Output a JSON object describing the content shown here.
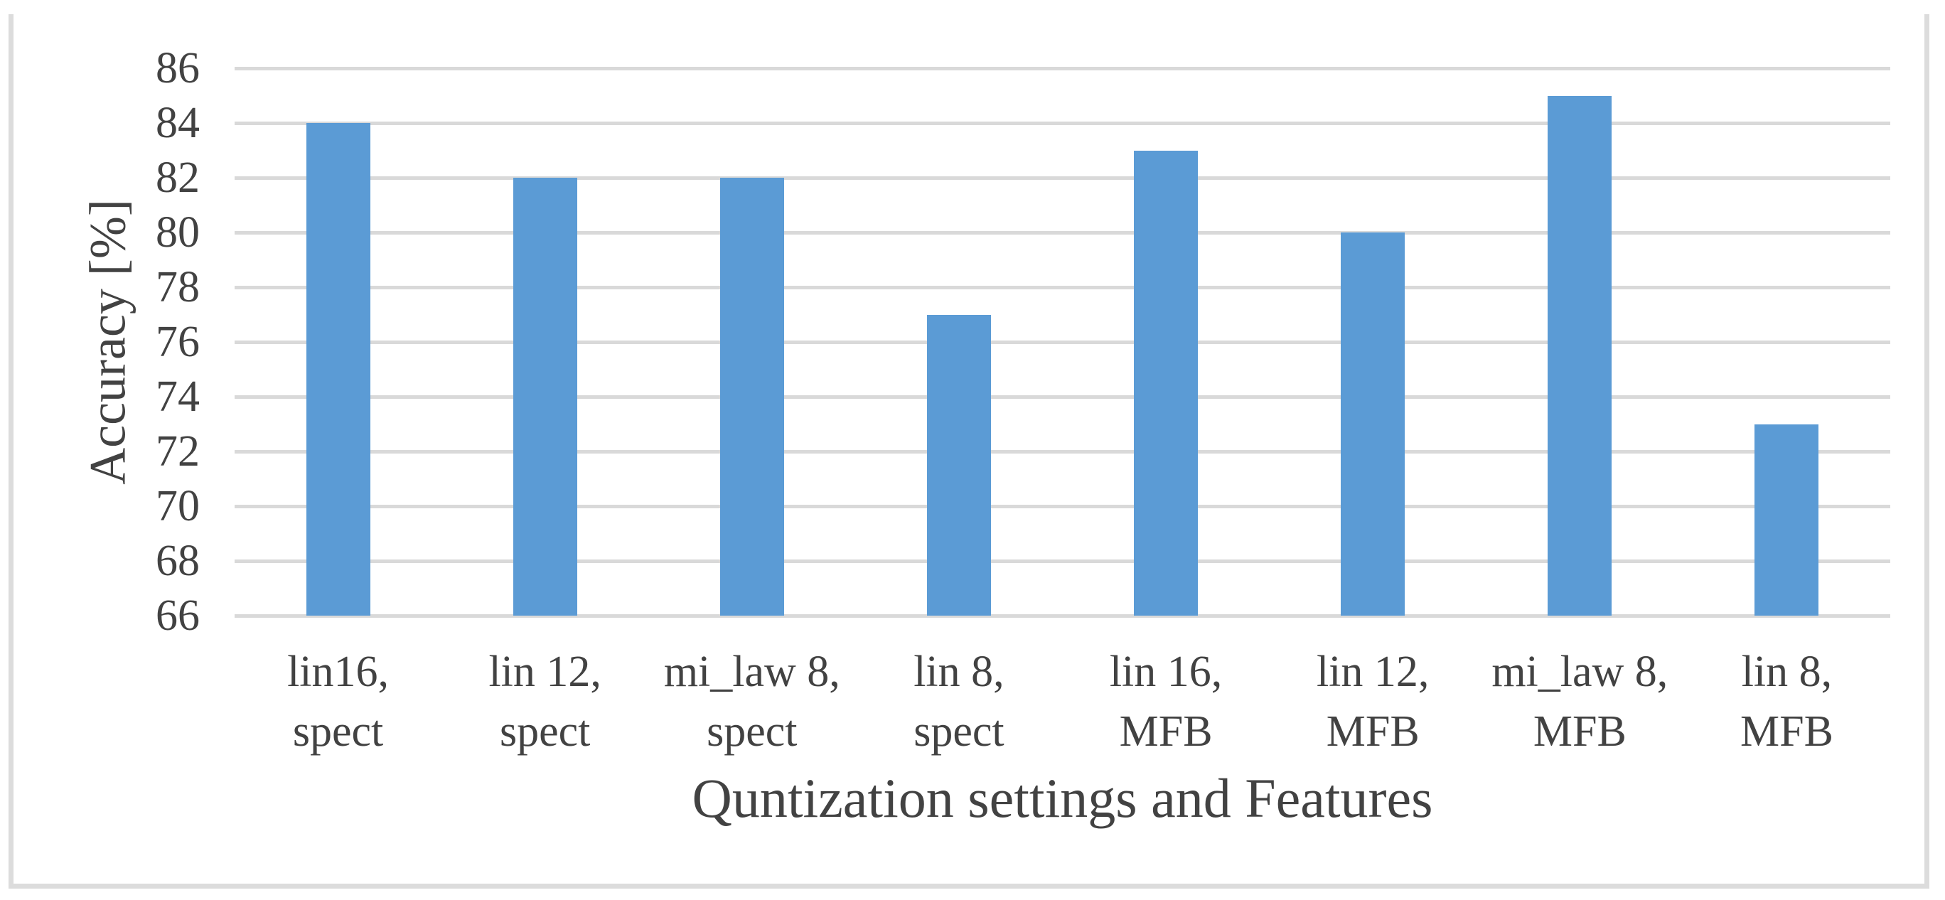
{
  "chart_data": {
    "type": "bar",
    "categories": [
      "lin16,\nspect",
      "lin 12,\nspect",
      "mi_law 8,\nspect",
      "lin 8,\nspect",
      "lin 16,\nMFB",
      "lin 12,\nMFB",
      "mi_law 8,\nMFB",
      "lin 8,\nMFB"
    ],
    "values": [
      84,
      82,
      82,
      77,
      83,
      80,
      85,
      73
    ],
    "title": "",
    "xlabel": "Quntization settings and Features",
    "ylabel": "Accuracy [%]",
    "ylim": [
      66,
      86
    ],
    "ytick_step": 2,
    "yticks": [
      86,
      84,
      82,
      80,
      78,
      76,
      74,
      72,
      70,
      68,
      66
    ],
    "grid": "horizontal-only",
    "legend": "none",
    "bar_color": "#5B9BD5",
    "gridline_color": "#D9D9D9",
    "frame_color": "#DCDCDC",
    "text_color": "#424242",
    "background_color": "#FFFFFF"
  }
}
